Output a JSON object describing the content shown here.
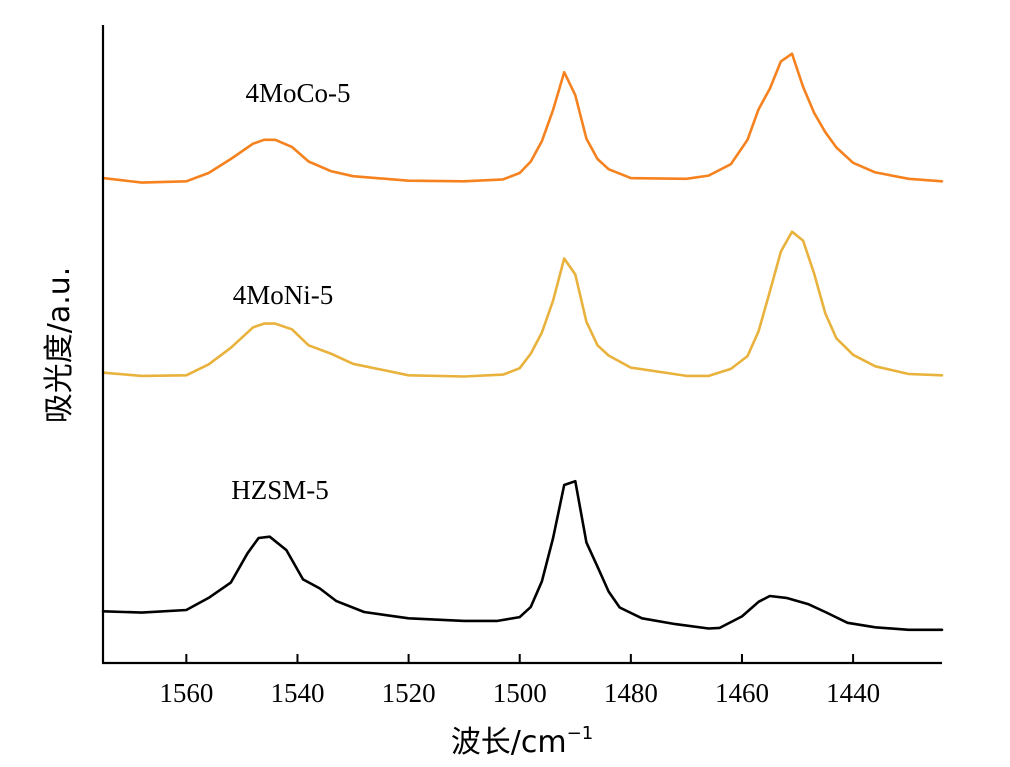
{
  "chart_data": {
    "type": "line",
    "title": "",
    "xlabel": "波长/cm",
    "xlabel_sup": "−1",
    "ylabel": "吸光度/a.u.",
    "x_reversed": true,
    "xlim": [
      1575,
      1424
    ],
    "x_ticks": [
      1560,
      1540,
      1520,
      1500,
      1480,
      1460,
      1440
    ],
    "y_ticks": [],
    "ylim": [
      0,
      1
    ],
    "grid": false,
    "legend": "none (series labelled inline)",
    "series": [
      {
        "name": "4MoCo-5",
        "color": "#F5821F",
        "x": [
          1575,
          1568,
          1560,
          1556,
          1552,
          1548,
          1546,
          1544,
          1541,
          1538,
          1534,
          1530,
          1520,
          1510,
          1503,
          1500,
          1498,
          1496,
          1494,
          1492,
          1490,
          1488,
          1486,
          1484,
          1480,
          1470,
          1466,
          1462,
          1459,
          1457,
          1455,
          1453,
          1451,
          1449,
          1447,
          1445,
          1443,
          1440,
          1436,
          1430,
          1424
        ],
        "y": [
          0.76,
          0.753,
          0.755,
          0.768,
          0.79,
          0.814,
          0.82,
          0.82,
          0.809,
          0.786,
          0.771,
          0.763,
          0.756,
          0.755,
          0.758,
          0.768,
          0.786,
          0.818,
          0.867,
          0.926,
          0.89,
          0.822,
          0.79,
          0.774,
          0.76,
          0.759,
          0.764,
          0.782,
          0.82,
          0.868,
          0.9,
          0.943,
          0.955,
          0.903,
          0.862,
          0.832,
          0.808,
          0.784,
          0.769,
          0.759,
          0.755
        ]
      },
      {
        "name": "4MoNi-5",
        "color": "#E8B23C",
        "x": [
          1575,
          1568,
          1560,
          1556,
          1552,
          1548,
          1546,
          1544,
          1541,
          1538,
          1534,
          1530,
          1520,
          1510,
          1503,
          1500,
          1498,
          1496,
          1494,
          1492,
          1490,
          1488,
          1486,
          1484,
          1480,
          1470,
          1466,
          1462,
          1459,
          1457,
          1455,
          1453,
          1451,
          1449,
          1447,
          1445,
          1443,
          1440,
          1436,
          1430,
          1424
        ],
        "y": [
          0.455,
          0.45,
          0.451,
          0.468,
          0.494,
          0.526,
          0.532,
          0.532,
          0.523,
          0.498,
          0.485,
          0.469,
          0.451,
          0.449,
          0.452,
          0.462,
          0.485,
          0.518,
          0.568,
          0.634,
          0.609,
          0.535,
          0.498,
          0.482,
          0.463,
          0.45,
          0.45,
          0.461,
          0.481,
          0.52,
          0.582,
          0.645,
          0.676,
          0.662,
          0.61,
          0.548,
          0.509,
          0.483,
          0.465,
          0.453,
          0.451
        ]
      },
      {
        "name": "HZSM-5",
        "color": "#000000",
        "x": [
          1575,
          1568,
          1560,
          1556,
          1552,
          1549,
          1547,
          1545,
          1542,
          1539,
          1536,
          1533,
          1528,
          1520,
          1510,
          1504,
          1500,
          1498,
          1496,
          1494,
          1492,
          1490,
          1488,
          1486,
          1484,
          1482,
          1478,
          1472,
          1466,
          1464,
          1460,
          1457,
          1455,
          1452,
          1448,
          1445,
          1441,
          1436,
          1430,
          1424
        ],
        "y": [
          0.081,
          0.079,
          0.083,
          0.102,
          0.126,
          0.172,
          0.196,
          0.198,
          0.177,
          0.131,
          0.117,
          0.097,
          0.08,
          0.07,
          0.066,
          0.066,
          0.072,
          0.088,
          0.128,
          0.196,
          0.279,
          0.285,
          0.189,
          0.151,
          0.112,
          0.087,
          0.07,
          0.061,
          0.054,
          0.055,
          0.073,
          0.096,
          0.105,
          0.102,
          0.092,
          0.08,
          0.063,
          0.056,
          0.052,
          0.052
        ]
      }
    ]
  }
}
